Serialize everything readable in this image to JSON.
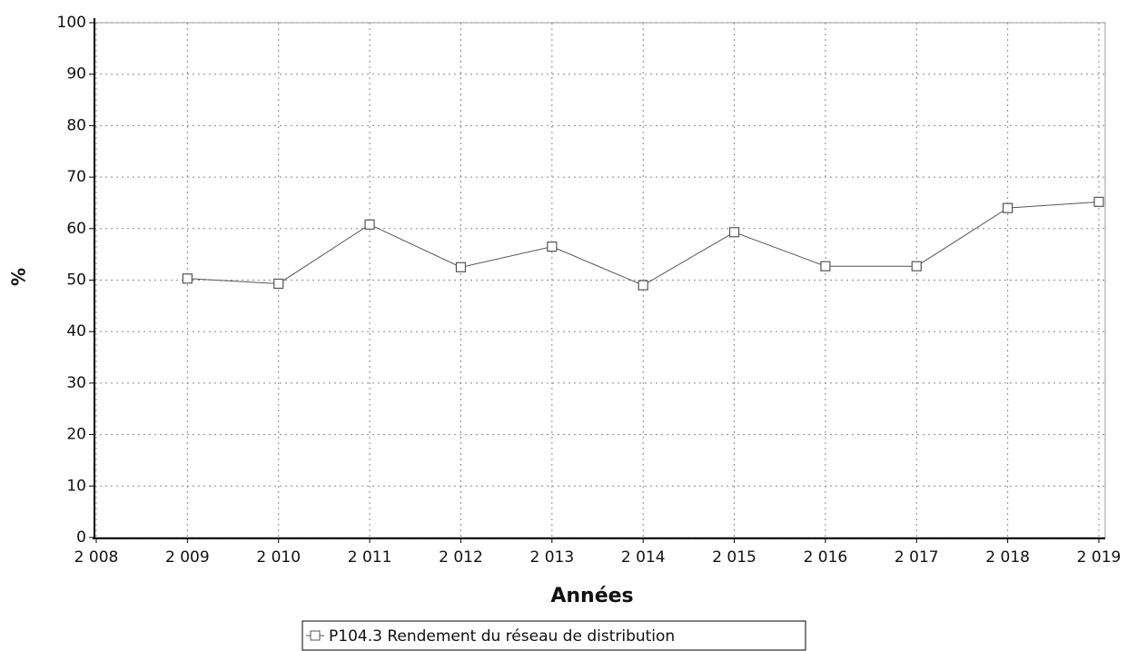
{
  "chart_data": {
    "type": "line",
    "x_label": "Années",
    "y_label": "%",
    "x": [
      2009,
      2010,
      2011,
      2012,
      2013,
      2014,
      2015,
      2016,
      2017,
      2018,
      2019
    ],
    "series": [
      {
        "name": "P104.3 Rendement du réseau de distribution",
        "color": "#555555",
        "values": [
          50.3,
          49.3,
          60.8,
          52.5,
          56.5,
          49.0,
          59.3,
          52.7,
          52.7,
          64.0,
          65.2
        ]
      }
    ],
    "xlim": [
      2008,
      2019
    ],
    "xticks": [
      {
        "value": 2008,
        "label": "2 008"
      },
      {
        "value": 2009,
        "label": "2 009"
      },
      {
        "value": 2010,
        "label": "2 010"
      },
      {
        "value": 2011,
        "label": "2 011"
      },
      {
        "value": 2012,
        "label": "2 012"
      },
      {
        "value": 2013,
        "label": "2 013"
      },
      {
        "value": 2014,
        "label": "2 014"
      },
      {
        "value": 2015,
        "label": "2 015"
      },
      {
        "value": 2016,
        "label": "2 016"
      },
      {
        "value": 2017,
        "label": "2 017"
      },
      {
        "value": 2018,
        "label": "2 018"
      },
      {
        "value": 2019,
        "label": "2 019"
      }
    ],
    "ylim": [
      0,
      100
    ],
    "yticks": [
      0,
      10,
      20,
      30,
      40,
      50,
      60,
      70,
      80,
      90,
      100
    ],
    "grid": true,
    "legend": "bottom"
  }
}
